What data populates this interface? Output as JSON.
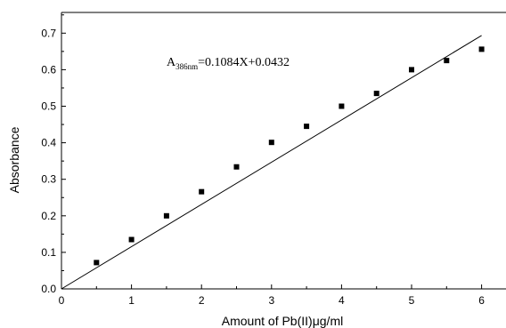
{
  "chart_data": {
    "type": "scatter",
    "title": "",
    "xlabel": "Amount of Pb(II)μg/ml",
    "ylabel": "Absorbance",
    "xlim": [
      0,
      6.5
    ],
    "ylim": [
      0,
      0.75
    ],
    "x_ticks": [
      "0",
      "1",
      "2",
      "3",
      "4",
      "5",
      "6"
    ],
    "y_ticks": [
      "0.0",
      "0.1",
      "0.2",
      "0.3",
      "0.4",
      "0.5",
      "0.6",
      "0.7"
    ],
    "grid": false,
    "legend": "none",
    "series": [
      {
        "x": [
          0.5,
          1.0,
          1.5,
          2.0,
          2.5,
          3.0,
          3.5,
          4.0,
          4.5,
          5.0,
          5.5,
          6.0
        ],
        "y": [
          0.072,
          0.135,
          0.2,
          0.266,
          0.334,
          0.401,
          0.445,
          0.5,
          0.535,
          0.6,
          0.625,
          0.656
        ]
      }
    ],
    "fit_line": {
      "slope": 0.1084,
      "intercept": 0.0432,
      "x_range": [
        0,
        6
      ]
    },
    "equation": {
      "A": "A",
      "subscript": "386nm",
      "rhs": "=0.1084X+0.0432"
    }
  }
}
